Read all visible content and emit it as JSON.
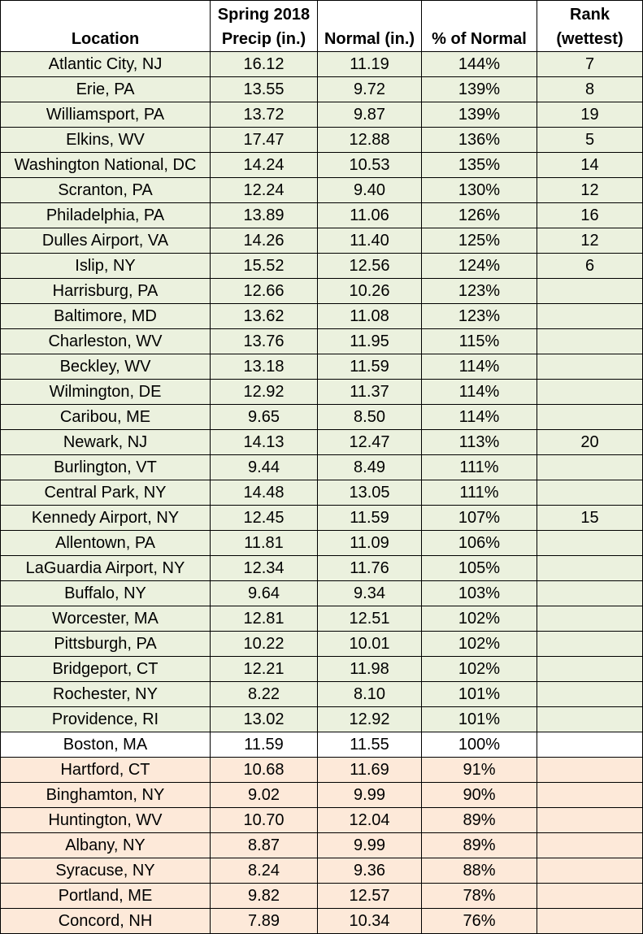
{
  "columns": [
    {
      "line1": "",
      "line2": "Location"
    },
    {
      "line1": "Spring 2018",
      "line2": "Precip (in.)"
    },
    {
      "line1": "",
      "line2": "Normal (in.)"
    },
    {
      "line1": "",
      "line2": "% of Normal"
    },
    {
      "line1": "Rank",
      "line2": "(wettest)"
    }
  ],
  "colors": {
    "above_normal": "#ebf1de",
    "at_normal": "#ffffff",
    "below_normal": "#fde9d9"
  },
  "rows": [
    {
      "location": "Atlantic City, NJ",
      "precip": "16.12",
      "normal": "11.19",
      "pct": "144%",
      "rank": "7",
      "status": "above"
    },
    {
      "location": "Erie, PA",
      "precip": "13.55",
      "normal": "9.72",
      "pct": "139%",
      "rank": "8",
      "status": "above"
    },
    {
      "location": "Williamsport, PA",
      "precip": "13.72",
      "normal": "9.87",
      "pct": "139%",
      "rank": "19",
      "status": "above"
    },
    {
      "location": "Elkins, WV",
      "precip": "17.47",
      "normal": "12.88",
      "pct": "136%",
      "rank": "5",
      "status": "above"
    },
    {
      "location": "Washington National, DC",
      "precip": "14.24",
      "normal": "10.53",
      "pct": "135%",
      "rank": "14",
      "status": "above"
    },
    {
      "location": "Scranton, PA",
      "precip": "12.24",
      "normal": "9.40",
      "pct": "130%",
      "rank": "12",
      "status": "above"
    },
    {
      "location": "Philadelphia, PA",
      "precip": "13.89",
      "normal": "11.06",
      "pct": "126%",
      "rank": "16",
      "status": "above"
    },
    {
      "location": "Dulles Airport, VA",
      "precip": "14.26",
      "normal": "11.40",
      "pct": "125%",
      "rank": "12",
      "status": "above"
    },
    {
      "location": "Islip, NY",
      "precip": "15.52",
      "normal": "12.56",
      "pct": "124%",
      "rank": "6",
      "status": "above"
    },
    {
      "location": "Harrisburg, PA",
      "precip": "12.66",
      "normal": "10.26",
      "pct": "123%",
      "rank": "",
      "status": "above"
    },
    {
      "location": "Baltimore, MD",
      "precip": "13.62",
      "normal": "11.08",
      "pct": "123%",
      "rank": "",
      "status": "above"
    },
    {
      "location": "Charleston, WV",
      "precip": "13.76",
      "normal": "11.95",
      "pct": "115%",
      "rank": "",
      "status": "above"
    },
    {
      "location": "Beckley, WV",
      "precip": "13.18",
      "normal": "11.59",
      "pct": "114%",
      "rank": "",
      "status": "above"
    },
    {
      "location": "Wilmington, DE",
      "precip": "12.92",
      "normal": "11.37",
      "pct": "114%",
      "rank": "",
      "status": "above"
    },
    {
      "location": "Caribou, ME",
      "precip": "9.65",
      "normal": "8.50",
      "pct": "114%",
      "rank": "",
      "status": "above"
    },
    {
      "location": "Newark, NJ",
      "precip": "14.13",
      "normal": "12.47",
      "pct": "113%",
      "rank": "20",
      "status": "above"
    },
    {
      "location": "Burlington, VT",
      "precip": "9.44",
      "normal": "8.49",
      "pct": "111%",
      "rank": "",
      "status": "above"
    },
    {
      "location": "Central Park, NY",
      "precip": "14.48",
      "normal": "13.05",
      "pct": "111%",
      "rank": "",
      "status": "above"
    },
    {
      "location": "Kennedy Airport, NY",
      "precip": "12.45",
      "normal": "11.59",
      "pct": "107%",
      "rank": "15",
      "status": "above"
    },
    {
      "location": "Allentown, PA",
      "precip": "11.81",
      "normal": "11.09",
      "pct": "106%",
      "rank": "",
      "status": "above"
    },
    {
      "location": "LaGuardia Airport, NY",
      "precip": "12.34",
      "normal": "11.76",
      "pct": "105%",
      "rank": "",
      "status": "above"
    },
    {
      "location": "Buffalo, NY",
      "precip": "9.64",
      "normal": "9.34",
      "pct": "103%",
      "rank": "",
      "status": "above"
    },
    {
      "location": "Worcester, MA",
      "precip": "12.81",
      "normal": "12.51",
      "pct": "102%",
      "rank": "",
      "status": "above"
    },
    {
      "location": "Pittsburgh, PA",
      "precip": "10.22",
      "normal": "10.01",
      "pct": "102%",
      "rank": "",
      "status": "above"
    },
    {
      "location": "Bridgeport, CT",
      "precip": "12.21",
      "normal": "11.98",
      "pct": "102%",
      "rank": "",
      "status": "above"
    },
    {
      "location": "Rochester, NY",
      "precip": "8.22",
      "normal": "8.10",
      "pct": "101%",
      "rank": "",
      "status": "above"
    },
    {
      "location": "Providence, RI",
      "precip": "13.02",
      "normal": "12.92",
      "pct": "101%",
      "rank": "",
      "status": "above"
    },
    {
      "location": "Boston, MA",
      "precip": "11.59",
      "normal": "11.55",
      "pct": "100%",
      "rank": "",
      "status": "normal"
    },
    {
      "location": "Hartford, CT",
      "precip": "10.68",
      "normal": "11.69",
      "pct": "91%",
      "rank": "",
      "status": "below"
    },
    {
      "location": "Binghamton, NY",
      "precip": "9.02",
      "normal": "9.99",
      "pct": "90%",
      "rank": "",
      "status": "below"
    },
    {
      "location": "Huntington, WV",
      "precip": "10.70",
      "normal": "12.04",
      "pct": "89%",
      "rank": "",
      "status": "below"
    },
    {
      "location": "Albany, NY",
      "precip": "8.87",
      "normal": "9.99",
      "pct": "89%",
      "rank": "",
      "status": "below"
    },
    {
      "location": "Syracuse, NY",
      "precip": "8.24",
      "normal": "9.36",
      "pct": "88%",
      "rank": "",
      "status": "below"
    },
    {
      "location": "Portland, ME",
      "precip": "9.82",
      "normal": "12.57",
      "pct": "78%",
      "rank": "",
      "status": "below"
    },
    {
      "location": "Concord, NH",
      "precip": "7.89",
      "normal": "10.34",
      "pct": "76%",
      "rank": "",
      "status": "below"
    }
  ]
}
